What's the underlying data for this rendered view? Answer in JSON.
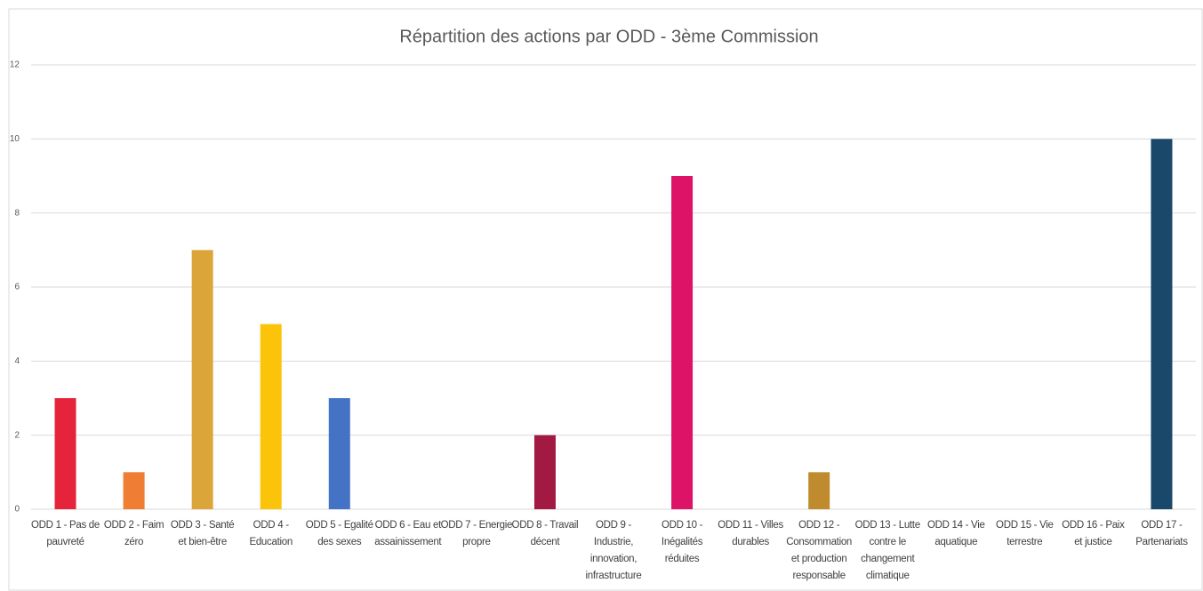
{
  "chart_data": {
    "type": "bar",
    "title": "Répartition des actions par ODD - 3ème Commission",
    "categories": [
      "ODD 1 - Pas de pauvreté",
      "ODD 2 - Faim zéro",
      "ODD 3 - Santé et bien-être",
      "ODD 4 - Education",
      "ODD 5 - Egalité des sexes",
      "ODD 6 - Eau et assainissement",
      "ODD 7 - Energie propre",
      "ODD 8 - Travail décent",
      "ODD 9 - Industrie, innovation, infrastructure",
      "ODD 10 - Inégalités réduites",
      "ODD 11 - Villes durables",
      "ODD 12 - Consommation et production responsable",
      "ODD 13 - Lutte contre le changement climatique",
      "ODD 14 - Vie aquatique",
      "ODD 15 - Vie terrestre",
      "ODD 16 - Paix et justice",
      "ODD 17 - Partenariats"
    ],
    "values": [
      3,
      1,
      7,
      5,
      3,
      0,
      0,
      2,
      0,
      9,
      0,
      1,
      0,
      0,
      0,
      0,
      10
    ],
    "colors": [
      "#e5243b",
      "#ef7d33",
      "#dba53a",
      "#fcc30b",
      "#4472c4",
      "#26bde2",
      "#fcc30b",
      "#a21942",
      "#fd6925",
      "#dd1367",
      "#fd9d24",
      "#bf8b2e",
      "#3f7e44",
      "#0a97d9",
      "#56c02b",
      "#00689d",
      "#19486a"
    ],
    "ylim": [
      0,
      12
    ],
    "yticks": [
      0,
      2,
      4,
      6,
      8,
      10,
      12
    ],
    "grid": true
  }
}
